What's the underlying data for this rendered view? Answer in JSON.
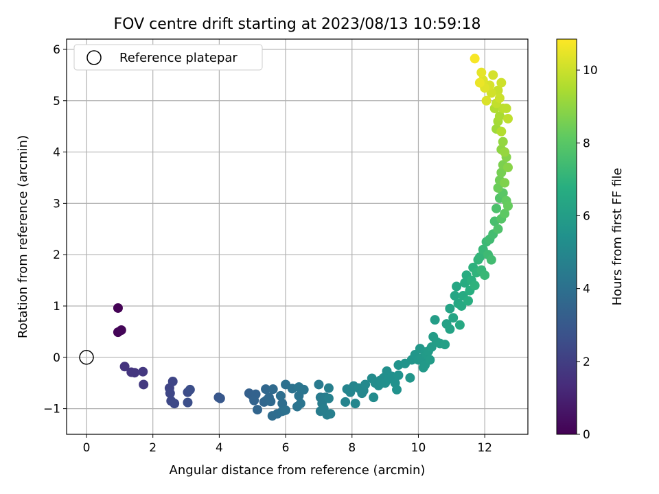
{
  "chart_data": {
    "type": "scatter",
    "title": "FOV centre drift starting at 2023/08/13 10:59:18",
    "xlabel": "Angular distance from reference (arcmin)",
    "ylabel": "Rotation from reference (arcmin)",
    "colorbar_label": "Hours from first FF file",
    "colormap": "viridis",
    "xlim": [
      -0.6,
      13.3
    ],
    "ylim": [
      -1.5,
      6.2
    ],
    "clim": [
      0,
      10.85
    ],
    "x_ticks": [
      0,
      2,
      4,
      6,
      8,
      10,
      12
    ],
    "x_tick_labels": [
      "0",
      "2",
      "4",
      "6",
      "8",
      "10",
      "12"
    ],
    "y_ticks": [
      -1,
      0,
      1,
      2,
      3,
      4,
      5,
      6
    ],
    "y_tick_labels": [
      "−1",
      "0",
      "1",
      "2",
      "3",
      "4",
      "5",
      "6"
    ],
    "colorbar_ticks": [
      0,
      2,
      4,
      6,
      8,
      10
    ],
    "colorbar_tick_labels": [
      "0",
      "2",
      "4",
      "6",
      "8",
      "10"
    ],
    "grid": true,
    "legend": {
      "position": "top-left",
      "entries": [
        {
          "label": "Reference platepar",
          "marker": "open-circle"
        }
      ]
    },
    "reference_point": {
      "x": 0,
      "y": 0
    },
    "points": [
      [
        0.95,
        0.96,
        0.05
      ],
      [
        0.95,
        0.49,
        0.1
      ],
      [
        1.05,
        0.53,
        0.15
      ],
      [
        1.15,
        -0.18,
        1.6
      ],
      [
        1.35,
        -0.29,
        1.65
      ],
      [
        1.45,
        -0.3,
        1.7
      ],
      [
        1.7,
        -0.28,
        1.75
      ],
      [
        1.72,
        -0.53,
        1.8
      ],
      [
        2.5,
        -0.6,
        2.2
      ],
      [
        2.6,
        -0.47,
        2.25
      ],
      [
        2.52,
        -0.7,
        2.3
      ],
      [
        2.55,
        -0.85,
        2.35
      ],
      [
        2.65,
        -0.9,
        2.4
      ],
      [
        3.05,
        -0.68,
        2.5
      ],
      [
        3.12,
        -0.63,
        2.55
      ],
      [
        3.05,
        -0.88,
        2.6
      ],
      [
        3.98,
        -0.78,
        2.9
      ],
      [
        4.03,
        -0.8,
        2.95
      ],
      [
        4.9,
        -0.7,
        3.3
      ],
      [
        5.0,
        -0.75,
        3.35
      ],
      [
        5.1,
        -0.72,
        3.4
      ],
      [
        5.05,
        -0.84,
        3.45
      ],
      [
        5.15,
        -1.02,
        3.5
      ],
      [
        5.35,
        -0.87,
        3.55
      ],
      [
        5.42,
        -0.84,
        3.6
      ],
      [
        5.4,
        -0.62,
        3.6
      ],
      [
        5.5,
        -0.78,
        3.65
      ],
      [
        5.55,
        -0.86,
        3.7
      ],
      [
        5.62,
        -0.62,
        3.75
      ],
      [
        5.6,
        -1.14,
        3.8
      ],
      [
        5.75,
        -1.1,
        3.85
      ],
      [
        5.85,
        -0.75,
        3.9
      ],
      [
        5.9,
        -0.9,
        3.92
      ],
      [
        5.9,
        -1.05,
        3.95
      ],
      [
        6.0,
        -0.53,
        4.0
      ],
      [
        6.0,
        -1.03,
        4.02
      ],
      [
        6.2,
        -0.61,
        4.05
      ],
      [
        6.35,
        -0.96,
        4.1
      ],
      [
        6.4,
        -0.75,
        4.12
      ],
      [
        6.45,
        -0.9,
        4.15
      ],
      [
        6.4,
        -0.58,
        4.18
      ],
      [
        6.55,
        -0.63,
        4.2
      ],
      [
        7.0,
        -0.53,
        4.4
      ],
      [
        7.05,
        -0.78,
        4.45
      ],
      [
        7.1,
        -0.9,
        4.5
      ],
      [
        7.05,
        -1.05,
        4.52
      ],
      [
        7.2,
        -0.78,
        4.55
      ],
      [
        7.15,
        -1.0,
        4.58
      ],
      [
        7.25,
        -1.12,
        4.6
      ],
      [
        7.35,
        -1.1,
        4.62
      ],
      [
        7.3,
        -0.6,
        4.65
      ],
      [
        7.3,
        -0.8,
        4.67
      ],
      [
        7.8,
        -0.87,
        4.8
      ],
      [
        7.85,
        -0.62,
        4.85
      ],
      [
        7.95,
        -0.68,
        4.9
      ],
      [
        8.05,
        -0.56,
        4.92
      ],
      [
        8.1,
        -0.9,
        4.95
      ],
      [
        8.2,
        -0.6,
        5.0
      ],
      [
        8.3,
        -0.7,
        5.02
      ],
      [
        8.35,
        -0.65,
        5.05
      ],
      [
        8.4,
        -0.53,
        5.08
      ],
      [
        8.6,
        -0.41,
        5.15
      ],
      [
        8.65,
        -0.78,
        5.18
      ],
      [
        8.7,
        -0.5,
        5.2
      ],
      [
        8.8,
        -0.55,
        5.22
      ],
      [
        8.85,
        -0.45,
        5.25
      ],
      [
        8.9,
        -0.5,
        5.28
      ],
      [
        8.95,
        -0.4,
        5.3
      ],
      [
        9.0,
        -0.5,
        5.32
      ],
      [
        9.05,
        -0.27,
        5.35
      ],
      [
        9.1,
        -0.42,
        5.37
      ],
      [
        9.2,
        -0.37,
        5.4
      ],
      [
        9.3,
        -0.5,
        5.42
      ],
      [
        9.35,
        -0.63,
        5.45
      ],
      [
        9.4,
        -0.35,
        5.47
      ],
      [
        9.4,
        -0.15,
        5.5
      ],
      [
        9.6,
        -0.12,
        5.55
      ],
      [
        9.8,
        -0.05,
        5.6
      ],
      [
        9.75,
        -0.4,
        5.62
      ],
      [
        9.9,
        0.05,
        5.65
      ],
      [
        10.0,
        -0.05,
        5.7
      ],
      [
        10.05,
        0.17,
        5.72
      ],
      [
        10.1,
        -0.02,
        5.75
      ],
      [
        10.15,
        -0.2,
        5.78
      ],
      [
        10.2,
        0.1,
        5.8
      ],
      [
        10.2,
        -0.15,
        5.82
      ],
      [
        10.25,
        0.05,
        5.85
      ],
      [
        10.3,
        0.12,
        5.87
      ],
      [
        10.35,
        -0.05,
        5.9
      ],
      [
        10.4,
        0.2,
        5.92
      ],
      [
        10.45,
        0.4,
        5.95
      ],
      [
        10.5,
        0.73,
        5.98
      ],
      [
        10.55,
        0.3,
        6.0
      ],
      [
        10.65,
        0.27,
        6.05
      ],
      [
        10.8,
        0.25,
        6.1
      ],
      [
        10.85,
        0.65,
        6.15
      ],
      [
        10.95,
        0.55,
        6.2
      ],
      [
        10.95,
        0.95,
        6.25
      ],
      [
        11.05,
        0.77,
        6.3
      ],
      [
        11.1,
        1.2,
        6.35
      ],
      [
        11.15,
        1.38,
        6.4
      ],
      [
        11.2,
        1.05,
        6.45
      ],
      [
        11.25,
        0.63,
        6.5
      ],
      [
        11.3,
        1.0,
        6.55
      ],
      [
        11.35,
        1.2,
        6.6
      ],
      [
        11.4,
        1.45,
        6.65
      ],
      [
        11.45,
        1.6,
        6.7
      ],
      [
        11.5,
        1.1,
        6.75
      ],
      [
        11.55,
        1.3,
        6.8
      ],
      [
        11.6,
        1.5,
        6.85
      ],
      [
        11.65,
        1.75,
        6.9
      ],
      [
        11.7,
        1.4,
        6.95
      ],
      [
        11.75,
        1.65,
        7.0
      ],
      [
        11.8,
        1.9,
        7.05
      ],
      [
        11.85,
        1.95,
        7.1
      ],
      [
        11.9,
        1.7,
        7.15
      ],
      [
        11.95,
        2.1,
        7.2
      ],
      [
        12.0,
        1.6,
        7.25
      ],
      [
        12.05,
        2.25,
        7.3
      ],
      [
        12.1,
        2.0,
        7.35
      ],
      [
        12.15,
        2.3,
        7.4
      ],
      [
        12.2,
        1.9,
        7.45
      ],
      [
        12.25,
        2.4,
        7.5
      ],
      [
        12.3,
        2.65,
        7.6
      ],
      [
        12.35,
        2.9,
        7.7
      ],
      [
        12.4,
        2.5,
        7.75
      ],
      [
        12.45,
        3.1,
        7.85
      ],
      [
        12.5,
        2.7,
        7.9
      ],
      [
        12.55,
        3.2,
        8.0
      ],
      [
        12.6,
        2.8,
        8.1
      ],
      [
        12.65,
        3.05,
        8.2
      ],
      [
        12.7,
        2.95,
        8.25
      ],
      [
        12.4,
        3.3,
        8.35
      ],
      [
        12.45,
        3.45,
        8.45
      ],
      [
        12.5,
        3.6,
        8.55
      ],
      [
        12.55,
        3.75,
        8.65
      ],
      [
        12.6,
        3.4,
        8.7
      ],
      [
        12.65,
        3.9,
        8.8
      ],
      [
        12.7,
        3.7,
        8.85
      ],
      [
        12.5,
        4.05,
        8.95
      ],
      [
        12.55,
        4.2,
        9.05
      ],
      [
        12.6,
        4.0,
        9.1
      ],
      [
        12.35,
        4.45,
        9.25
      ],
      [
        12.4,
        4.6,
        9.35
      ],
      [
        12.45,
        4.7,
        9.45
      ],
      [
        12.3,
        4.85,
        9.55
      ],
      [
        12.5,
        4.4,
        9.6
      ],
      [
        12.55,
        4.85,
        9.7
      ],
      [
        12.65,
        4.85,
        9.75
      ],
      [
        12.7,
        4.65,
        9.8
      ],
      [
        12.35,
        4.95,
        9.85
      ],
      [
        12.4,
        5.2,
        9.95
      ],
      [
        12.45,
        5.05,
        10.0
      ],
      [
        12.5,
        5.35,
        10.05
      ],
      [
        12.2,
        5.15,
        10.1
      ],
      [
        12.25,
        5.5,
        10.15
      ],
      [
        12.15,
        5.3,
        10.2
      ],
      [
        12.05,
        5.0,
        10.25
      ],
      [
        11.95,
        5.4,
        10.3
      ],
      [
        12.0,
        5.25,
        10.35
      ],
      [
        11.9,
        5.55,
        10.45
      ],
      [
        11.85,
        5.35,
        10.55
      ],
      [
        11.7,
        5.82,
        10.75
      ]
    ]
  }
}
